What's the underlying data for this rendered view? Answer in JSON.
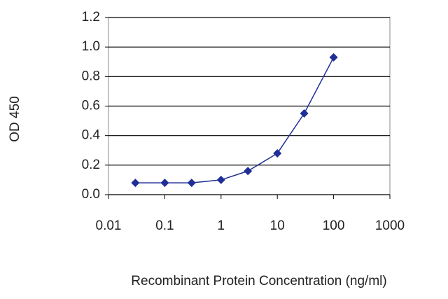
{
  "chart_data": {
    "type": "line",
    "x_label": "Recombinant Protein Concentration (ng/ml)",
    "y_label": "OD 450",
    "x": [
      0.03,
      0.1,
      0.3,
      1,
      3,
      10,
      30,
      100
    ],
    "values": [
      0.08,
      0.08,
      0.08,
      0.1,
      0.16,
      0.28,
      0.55,
      0.93
    ],
    "color": "#1f2f96",
    "xscale": "log",
    "xlim": [
      0.01,
      1000
    ],
    "xticks": [
      0.01,
      0.1,
      1,
      10,
      100,
      1000
    ],
    "ylim": [
      0,
      1.2
    ],
    "yticks": [
      {
        "value": 0,
        "label": "0.0"
      },
      0.2,
      0.4,
      0.6,
      0.8,
      {
        "value": 1,
        "label": "1.0"
      },
      1.2
    ],
    "grid": true
  }
}
